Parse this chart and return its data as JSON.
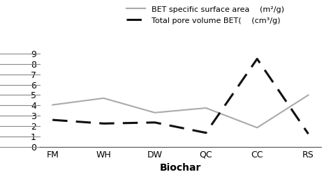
{
  "categories": [
    "FM",
    "WH",
    "DW",
    "QC",
    "CC",
    "RS"
  ],
  "bet_surface": [
    4.05,
    4.7,
    3.3,
    3.75,
    1.85,
    5.0
  ],
  "total_pore": [
    2.6,
    2.25,
    2.35,
    1.35,
    8.5,
    1.25
  ],
  "bet_color": "#aaaaaa",
  "pore_color": "#111111",
  "xlabel": "Biochar",
  "ylim": [
    0,
    9
  ],
  "yticks": [
    0,
    1,
    2,
    3,
    4,
    5,
    6,
    7,
    8,
    9
  ],
  "legend_bet": "BET specific surface area  (m²/g)",
  "legend_pore": "Total pore volume BET(  (cm³/g)"
}
